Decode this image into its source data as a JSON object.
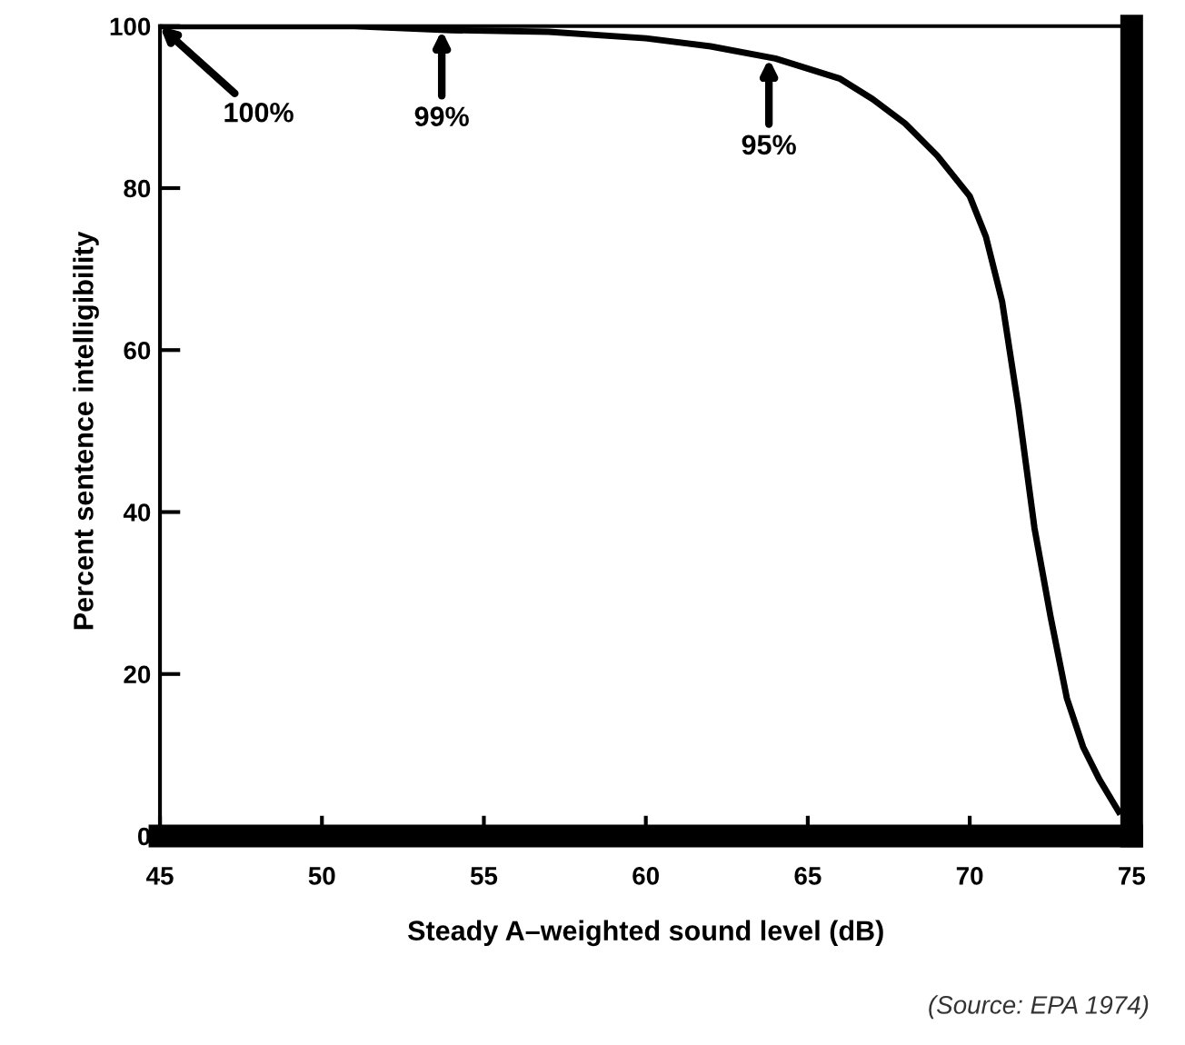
{
  "chart_data": {
    "type": "line",
    "xlabel": "Steady A–weighted sound level (dB)",
    "ylabel": "Percent sentence intelligibility",
    "x": [
      45,
      48,
      51,
      54,
      57,
      60,
      62,
      64,
      66,
      67,
      68,
      69,
      70,
      70.5,
      71,
      71.5,
      72,
      72.5,
      73,
      73.5,
      74,
      74.6
    ],
    "series": [
      {
        "color": "#000000",
        "values": [
          100,
          100,
          100,
          99.5,
          99.3,
          98.5,
          97.5,
          96,
          93.5,
          91,
          88,
          84,
          79,
          74,
          66,
          53,
          38,
          27,
          17,
          11,
          7,
          3
        ]
      }
    ],
    "xlim": [
      45,
      75
    ],
    "ylim": [
      0,
      100
    ],
    "xticks": [
      45,
      50,
      55,
      60,
      65,
      70,
      75
    ],
    "yticks": [
      0,
      20,
      40,
      60,
      80,
      100
    ],
    "grid": false,
    "legend": false,
    "marker": "none",
    "line_style": "solid",
    "annotations": [
      {
        "text": "100%",
        "x": 45,
        "y": 100
      },
      {
        "text": "99%",
        "x": 53.7,
        "y": 99.5
      },
      {
        "text": "95%",
        "x": 63.8,
        "y": 96
      },
      "(Source: EPA 1974)"
    ]
  }
}
